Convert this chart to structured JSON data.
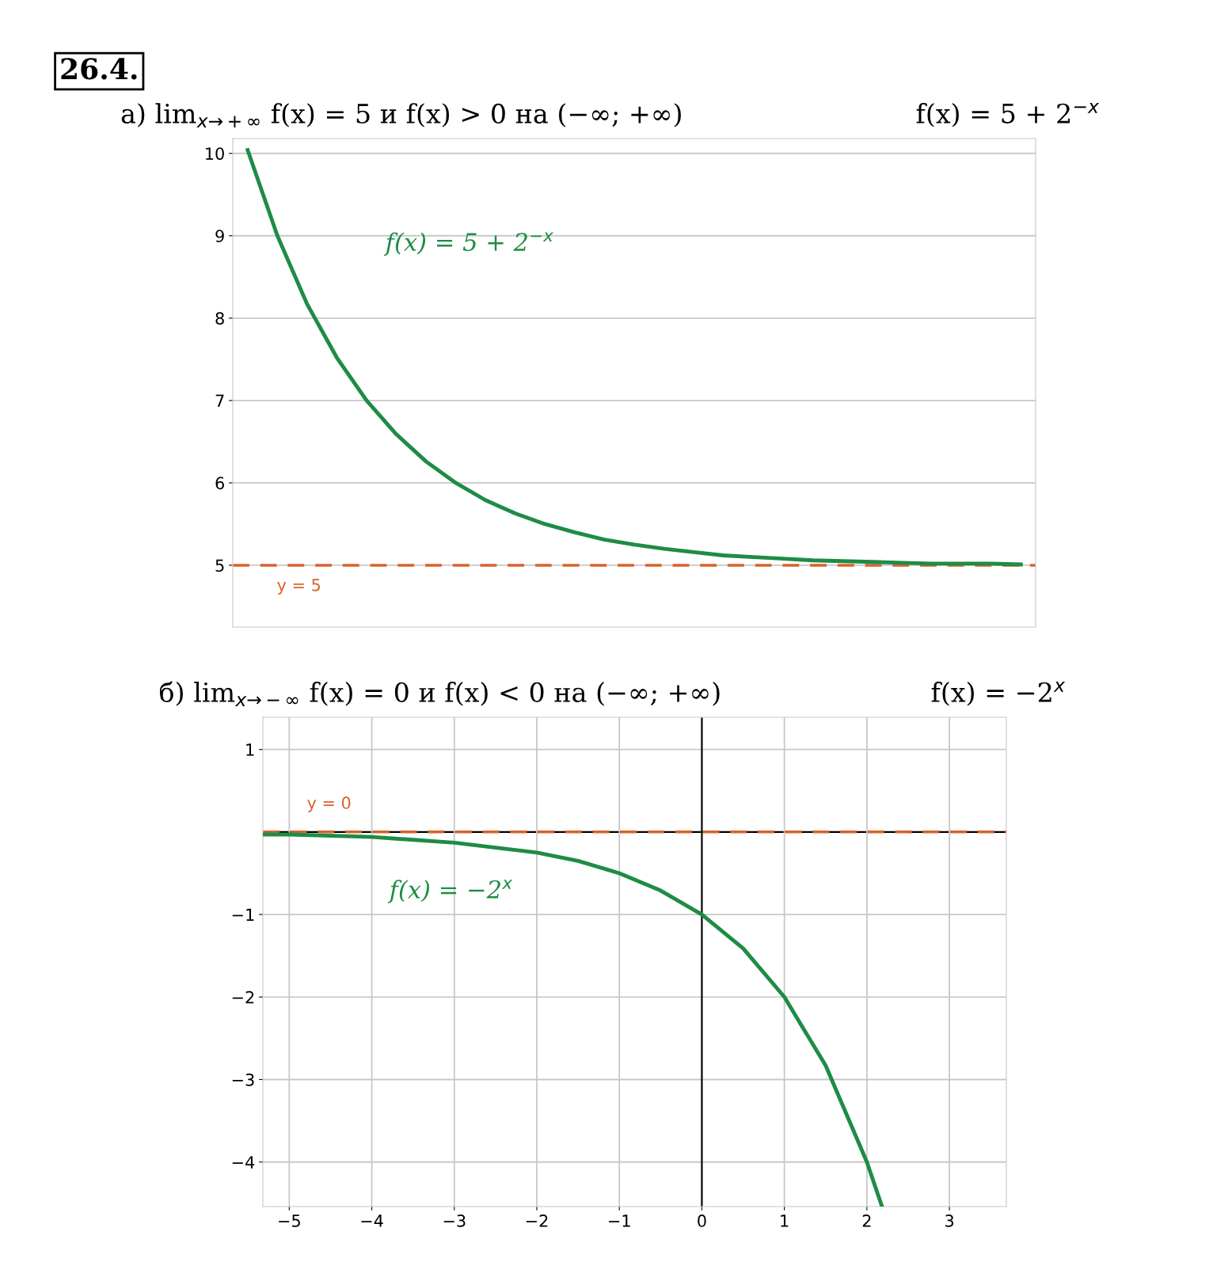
{
  "chart_data": [
    {
      "type": "line",
      "title": "а) lim$_{x→+∞}$ f(x) = 5 и f(x) > 0 на (−∞; +∞)",
      "subtitle": "f(x) = 5 + 2$^{−x}$",
      "categories": [
        null,
        null,
        null,
        null,
        null,
        null,
        null,
        null,
        null,
        null,
        null,
        null,
        null,
        null,
        null,
        null,
        null,
        null,
        null,
        null,
        null,
        null,
        null,
        null,
        null,
        null,
        null
      ],
      "series": [
        {
          "color": "#1e8c45",
          "values": [
            10.04,
            9.0,
            8.17,
            7.52,
            7.0,
            6.59,
            6.26,
            6.0,
            5.79,
            5.63,
            5.5,
            5.4,
            5.31,
            5.25,
            5.2,
            5.16,
            5.12,
            5.1,
            5.08,
            5.06,
            5.05,
            5.04,
            5.03,
            5.02,
            5.02,
            5.02,
            5.01
          ]
        }
      ],
      "ylim": [
        4.25,
        10.18
      ],
      "yticks": [
        5,
        6,
        7,
        8,
        9,
        10
      ],
      "tick_labels": "y",
      "ref_lines": [
        {
          "axis": "y",
          "value": 5,
          "label": "y = 5",
          "color": "#d9622b",
          "line_style": "dashed"
        }
      ],
      "annotations": [
        "26.4.",
        "f(x) = 5 + 2$^{−x}$"
      ],
      "grid": "y",
      "line_style": "solid",
      "marker": "none"
    },
    {
      "type": "line",
      "title": "б) lim$_{x→−∞}$ f(x) = 0 и f(x) < 0 на (−∞; +∞)",
      "subtitle": "f(x) = −2$^{x}$",
      "x": [
        -5.32,
        -5,
        -4,
        -3,
        -2,
        -1.5,
        -1,
        -0.5,
        0,
        0.5,
        1,
        1.5,
        2,
        2.18
      ],
      "series": [
        {
          "color": "#1e8c45",
          "values": [
            -0.03,
            -0.03,
            -0.06,
            -0.13,
            -0.25,
            -0.35,
            -0.5,
            -0.71,
            -1.0,
            -1.41,
            -2.0,
            -2.83,
            -4.0,
            -4.53
          ]
        }
      ],
      "xlim": [
        -5.32,
        3.69
      ],
      "ylim": [
        -4.54,
        1.39
      ],
      "xticks": [
        -5,
        -4,
        -3,
        -2,
        -1,
        0,
        1,
        2,
        3
      ],
      "yticks": [
        -4,
        -3,
        -2,
        -1,
        1
      ],
      "ref_lines": [
        {
          "axis": "y",
          "value": 0,
          "label": "y = 0",
          "color": "#d9622b",
          "line_style": "dashed"
        }
      ],
      "annotations": [
        "f(x) = −2$^{x}$"
      ],
      "grid": true,
      "line_style": "solid",
      "marker": "none"
    }
  ]
}
